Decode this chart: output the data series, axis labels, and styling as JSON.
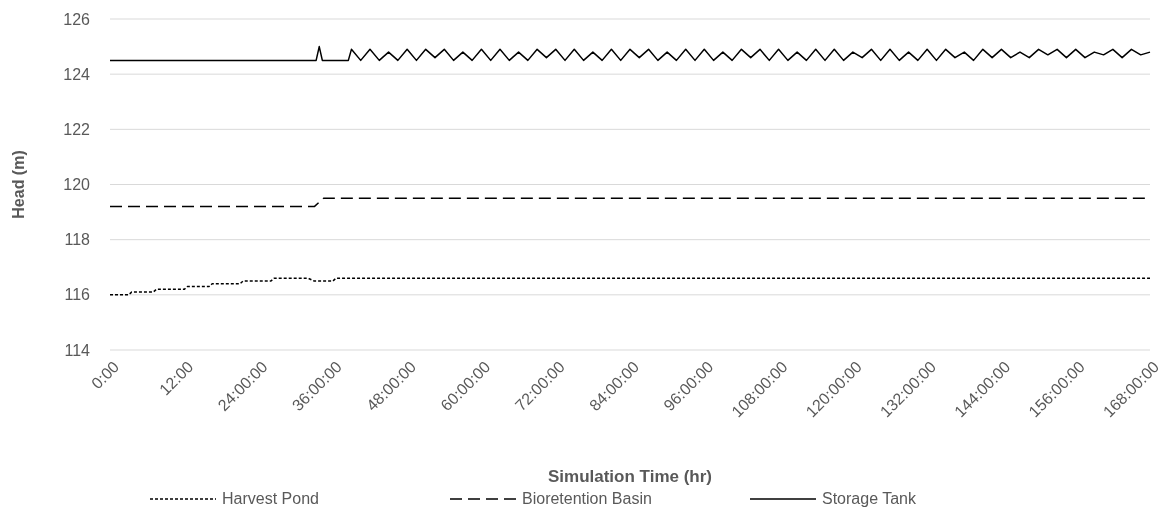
{
  "chart_data": {
    "type": "line",
    "xlabel": "Simulation Time (hr)",
    "ylabel": "Head (m)",
    "xlim": [
      0,
      168
    ],
    "xticks": [
      {
        "value": 0,
        "label": "0:00"
      },
      {
        "value": 12,
        "label": "12:00"
      },
      {
        "value": 24,
        "label": "24:00:00"
      },
      {
        "value": 36,
        "label": "36:00:00"
      },
      {
        "value": 48,
        "label": "48:00:00"
      },
      {
        "value": 60,
        "label": "60:00:00"
      },
      {
        "value": 72,
        "label": "72:00:00"
      },
      {
        "value": 84,
        "label": "84:00:00"
      },
      {
        "value": 96,
        "label": "96:00:00"
      },
      {
        "value": 108,
        "label": "108:00:00"
      },
      {
        "value": 120,
        "label": "120:00:00"
      },
      {
        "value": 132,
        "label": "132:00:00"
      },
      {
        "value": 144,
        "label": "144:00:00"
      },
      {
        "value": 156,
        "label": "156:00:00"
      },
      {
        "value": 168,
        "label": "168:00:00"
      }
    ],
    "ylim": [
      114,
      126
    ],
    "yticks": [
      114,
      116,
      118,
      120,
      122,
      124,
      126
    ],
    "grid": "y",
    "legend": "bottom",
    "series": [
      {
        "name": "Harvest Pond",
        "color": "#000000",
        "line_style": "dotted",
        "x": [
          0,
          3,
          3.5,
          7,
          7.5,
          12,
          12.5,
          16,
          16.5,
          21,
          21.5,
          26,
          26.5,
          32,
          33,
          34,
          36,
          36.5,
          168
        ],
        "values": [
          116,
          116,
          116.1,
          116.1,
          116.2,
          116.2,
          116.3,
          116.3,
          116.4,
          116.4,
          116.5,
          116.5,
          116.6,
          116.6,
          116.5,
          116.5,
          116.5,
          116.6,
          116.6
        ]
      },
      {
        "name": "Bioretention Basin",
        "color": "#000000",
        "line_style": "dashed",
        "x": [
          0,
          33,
          34.5,
          168
        ],
        "values": [
          119.2,
          119.2,
          119.5,
          119.5
        ]
      },
      {
        "name": "Storage Tank",
        "color": "#000000",
        "line_style": "solid",
        "x": [
          0,
          33.3,
          33.8,
          34.3,
          38.5,
          39,
          40.5,
          42,
          43.5,
          45,
          46.5,
          48,
          49.5,
          51,
          52.5,
          54,
          55.5,
          57,
          58.5,
          60,
          61.5,
          63,
          64.5,
          66,
          67.5,
          69,
          70.5,
          72,
          73.5,
          75,
          76.5,
          78,
          79.5,
          81,
          82.5,
          84,
          85.5,
          87,
          88.5,
          90,
          91.5,
          93,
          94.5,
          96,
          97.5,
          99,
          100.5,
          102,
          103.5,
          105,
          106.5,
          108,
          109.5,
          111,
          112.5,
          114,
          115.5,
          117,
          118.5,
          120,
          121.5,
          123,
          124.5,
          126,
          127.5,
          129,
          130.5,
          132,
          133.5,
          135,
          136.5,
          138,
          139.5,
          141,
          142.5,
          144,
          145.5,
          147,
          148.5,
          150,
          151.5,
          153,
          154.5,
          156,
          157.5,
          159,
          160.5,
          162,
          163.5,
          165,
          166.5,
          168
        ],
        "values": [
          124.5,
          124.5,
          125,
          124.5,
          124.5,
          124.9,
          124.5,
          124.9,
          124.5,
          124.8,
          124.5,
          124.9,
          124.5,
          124.9,
          124.6,
          124.9,
          124.5,
          124.8,
          124.5,
          124.9,
          124.5,
          124.9,
          124.5,
          124.8,
          124.5,
          124.9,
          124.6,
          124.9,
          124.5,
          124.9,
          124.5,
          124.8,
          124.5,
          124.9,
          124.5,
          124.9,
          124.6,
          124.9,
          124.5,
          124.8,
          124.5,
          124.9,
          124.5,
          124.9,
          124.5,
          124.8,
          124.5,
          124.9,
          124.6,
          124.9,
          124.5,
          124.9,
          124.5,
          124.8,
          124.5,
          124.9,
          124.5,
          124.9,
          124.5,
          124.8,
          124.6,
          124.9,
          124.5,
          124.9,
          124.5,
          124.8,
          124.5,
          124.9,
          124.5,
          124.9,
          124.6,
          124.8,
          124.5,
          124.9,
          124.6,
          124.9,
          124.6,
          124.8,
          124.6,
          124.9,
          124.7,
          124.9,
          124.6,
          124.9,
          124.6,
          124.8,
          124.7,
          124.9,
          124.6,
          124.9,
          124.7,
          124.8
        ]
      }
    ]
  }
}
